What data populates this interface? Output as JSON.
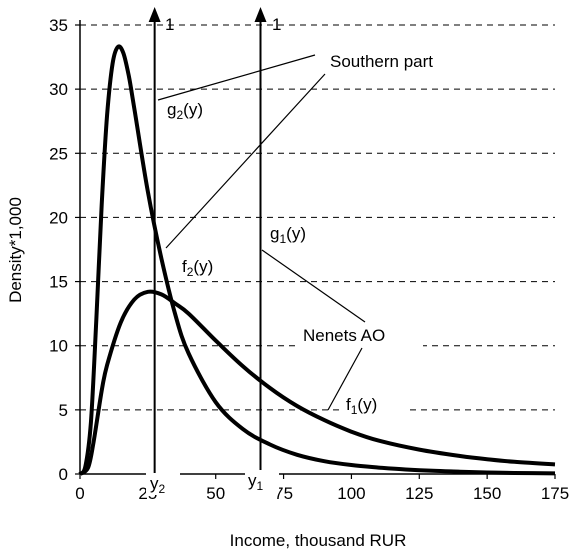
{
  "chart_data": {
    "type": "line",
    "title": "",
    "xlabel": "Income, thousand RUR",
    "ylabel": "Density*1,000",
    "xlim": [
      0,
      175
    ],
    "ylim": [
      0,
      35
    ],
    "x_ticks": [
      "0",
      "25",
      "50",
      "75",
      "100",
      "125",
      "150",
      "175"
    ],
    "y_ticks": [
      "0",
      "5",
      "10",
      "15",
      "20",
      "25",
      "30",
      "35"
    ],
    "grid": "horizontal dashed",
    "legend": "none",
    "series": [
      {
        "name": "Southern part",
        "x": [
          0,
          2,
          4,
          6,
          8,
          10,
          12,
          14,
          16,
          18,
          20,
          25,
          30,
          35,
          40,
          50,
          60,
          70,
          80,
          90,
          100,
          110,
          120,
          130,
          140,
          150,
          160,
          175
        ],
        "values": [
          0,
          0.6,
          4,
          12,
          21,
          28,
          32,
          33.3,
          32.8,
          31,
          28.5,
          22,
          16.8,
          12.5,
          9.4,
          5.6,
          3.5,
          2.3,
          1.5,
          1.0,
          0.7,
          0.5,
          0.35,
          0.25,
          0.18,
          0.12,
          0.08,
          0.05
        ]
      },
      {
        "name": "Nenets AO",
        "x": [
          0,
          3,
          5,
          8,
          10,
          15,
          20,
          25,
          30,
          35,
          40,
          50,
          60,
          70,
          80,
          90,
          100,
          110,
          125,
          140,
          150,
          160,
          175
        ],
        "values": [
          0,
          0.5,
          2.5,
          6.5,
          8.5,
          11.8,
          13.6,
          14.2,
          14,
          13.3,
          12.5,
          10.4,
          8.4,
          6.7,
          5.3,
          4.2,
          3.3,
          2.6,
          1.9,
          1.4,
          1.15,
          0.95,
          0.75
        ]
      }
    ],
    "thresholds": [
      {
        "label_number": "1",
        "x_label": "y",
        "x_label_sub": "2",
        "x": 27.5
      },
      {
        "label_number": "1",
        "x_label": "y",
        "x_label_sub": "1",
        "x": 66.5
      }
    ],
    "annotations": [
      {
        "text": "g",
        "sub": "2",
        "suffix": "(y)"
      },
      {
        "text": "f",
        "sub": "2",
        "suffix": "(y)"
      },
      {
        "text": "g",
        "sub": "1",
        "suffix": "(y)"
      },
      {
        "text": "f",
        "sub": "1",
        "suffix": "(y)"
      }
    ],
    "callouts": [
      "Southern part",
      "Nenets AO"
    ]
  }
}
